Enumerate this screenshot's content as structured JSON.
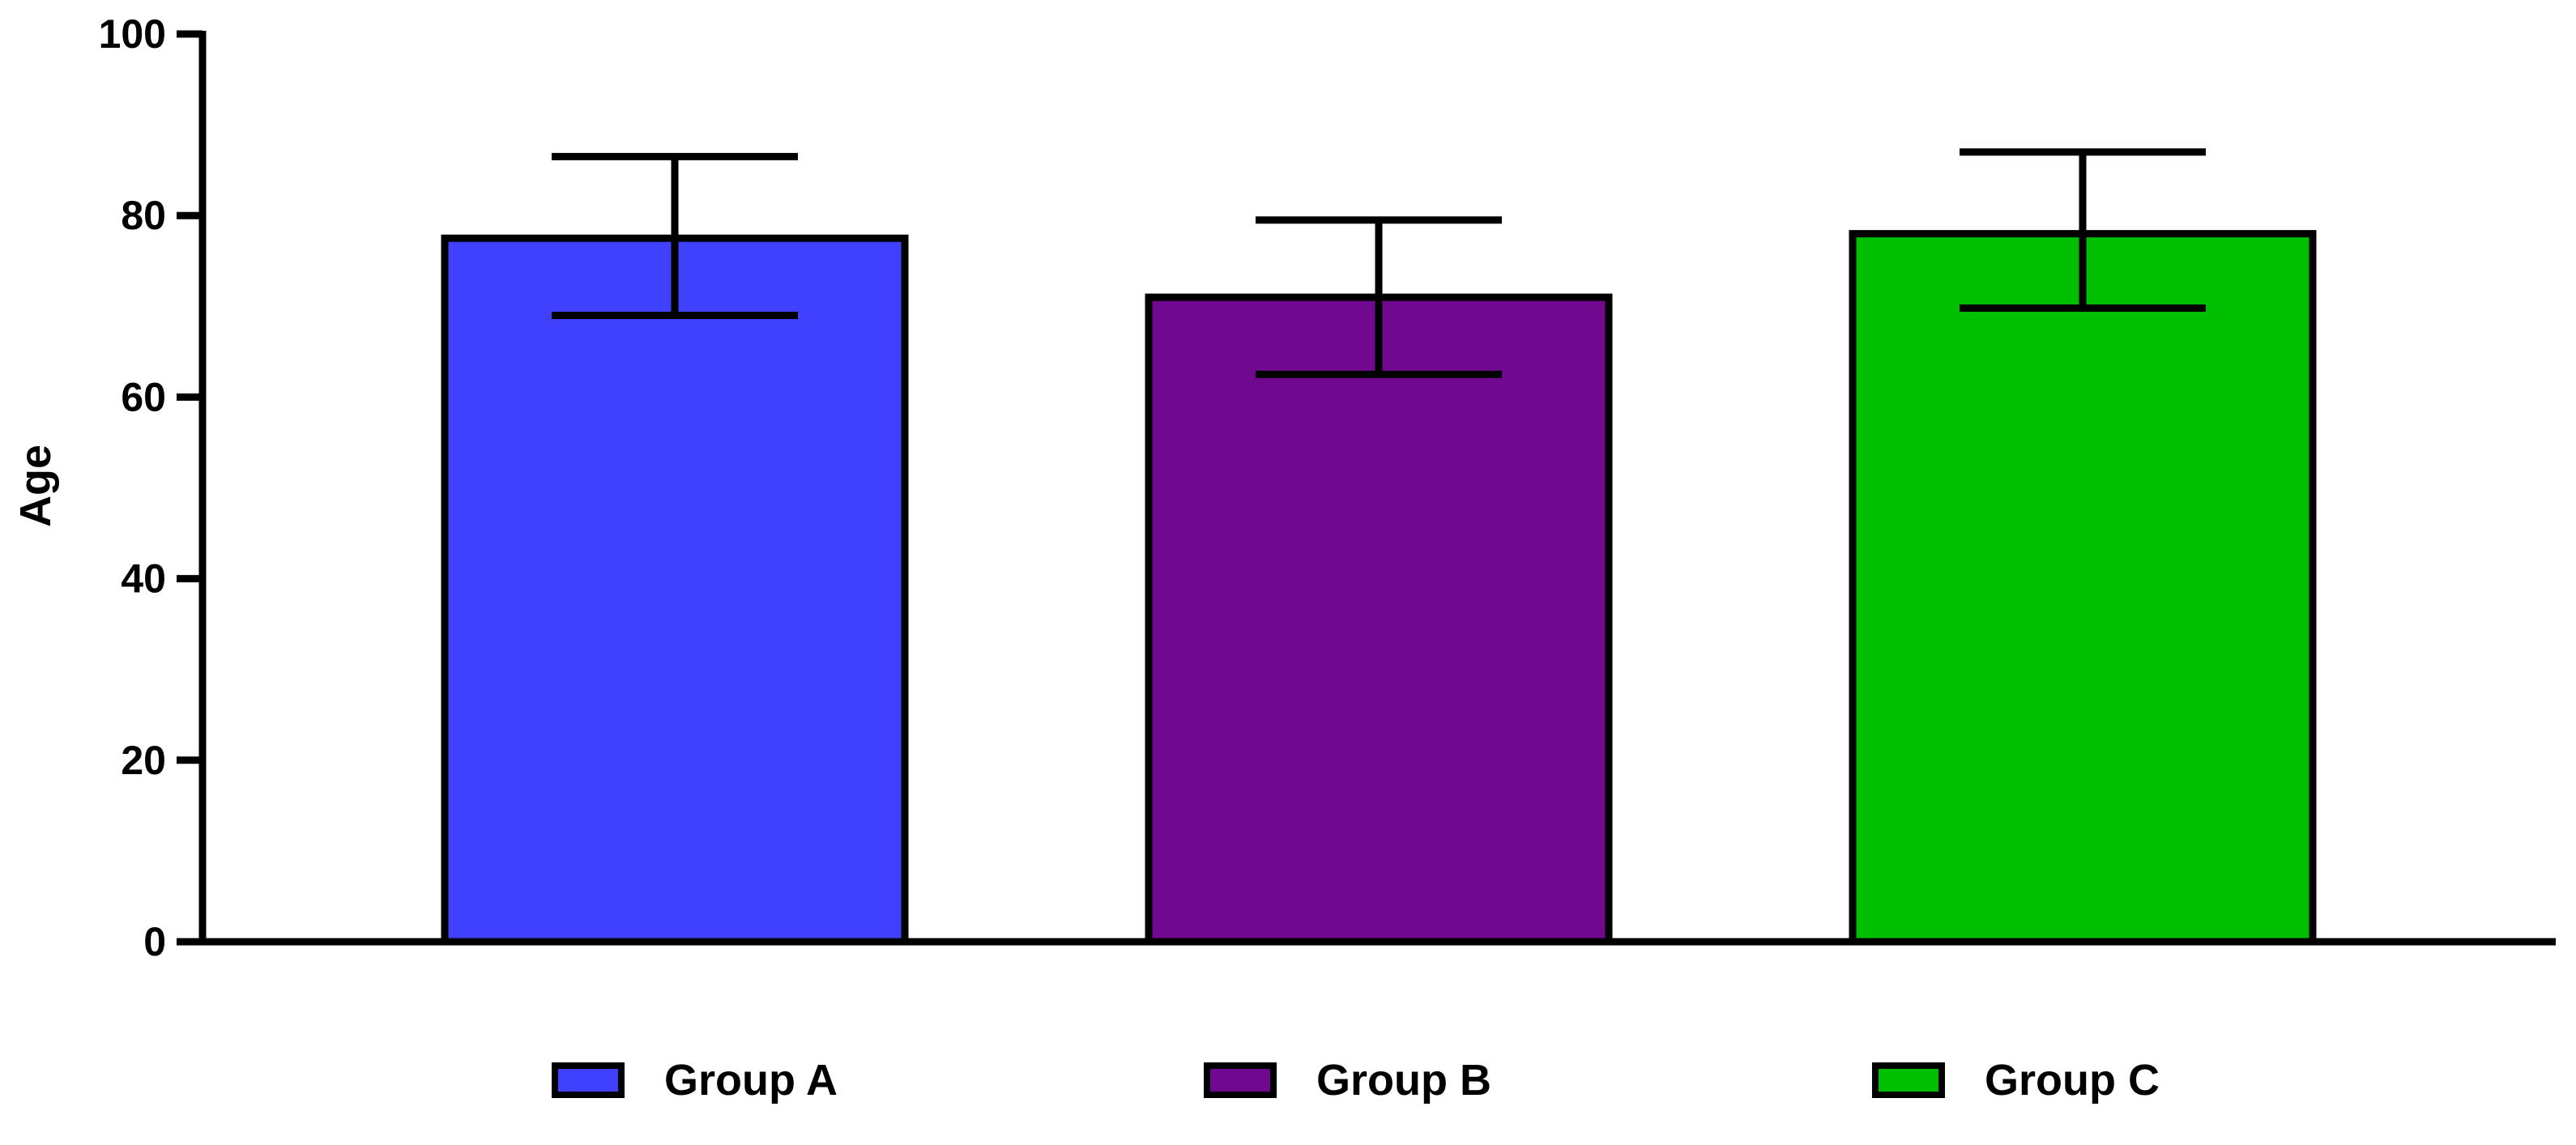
{
  "chart_data": {
    "type": "bar",
    "title": "",
    "xlabel": "",
    "ylabel": "Age",
    "ylim": [
      0,
      100
    ],
    "yticks": [
      0,
      20,
      40,
      60,
      80,
      100
    ],
    "grid": false,
    "legend_position": "bottom",
    "categories": [
      "Group A",
      "Group B",
      "Group C"
    ],
    "values": [
      77.5,
      71,
      78
    ],
    "error_upper": [
      86.5,
      79.5,
      87
    ],
    "error_lower": [
      69,
      62.5,
      69.8
    ],
    "colors": [
      "#4040ff",
      "#700890",
      "#00bf00"
    ]
  }
}
